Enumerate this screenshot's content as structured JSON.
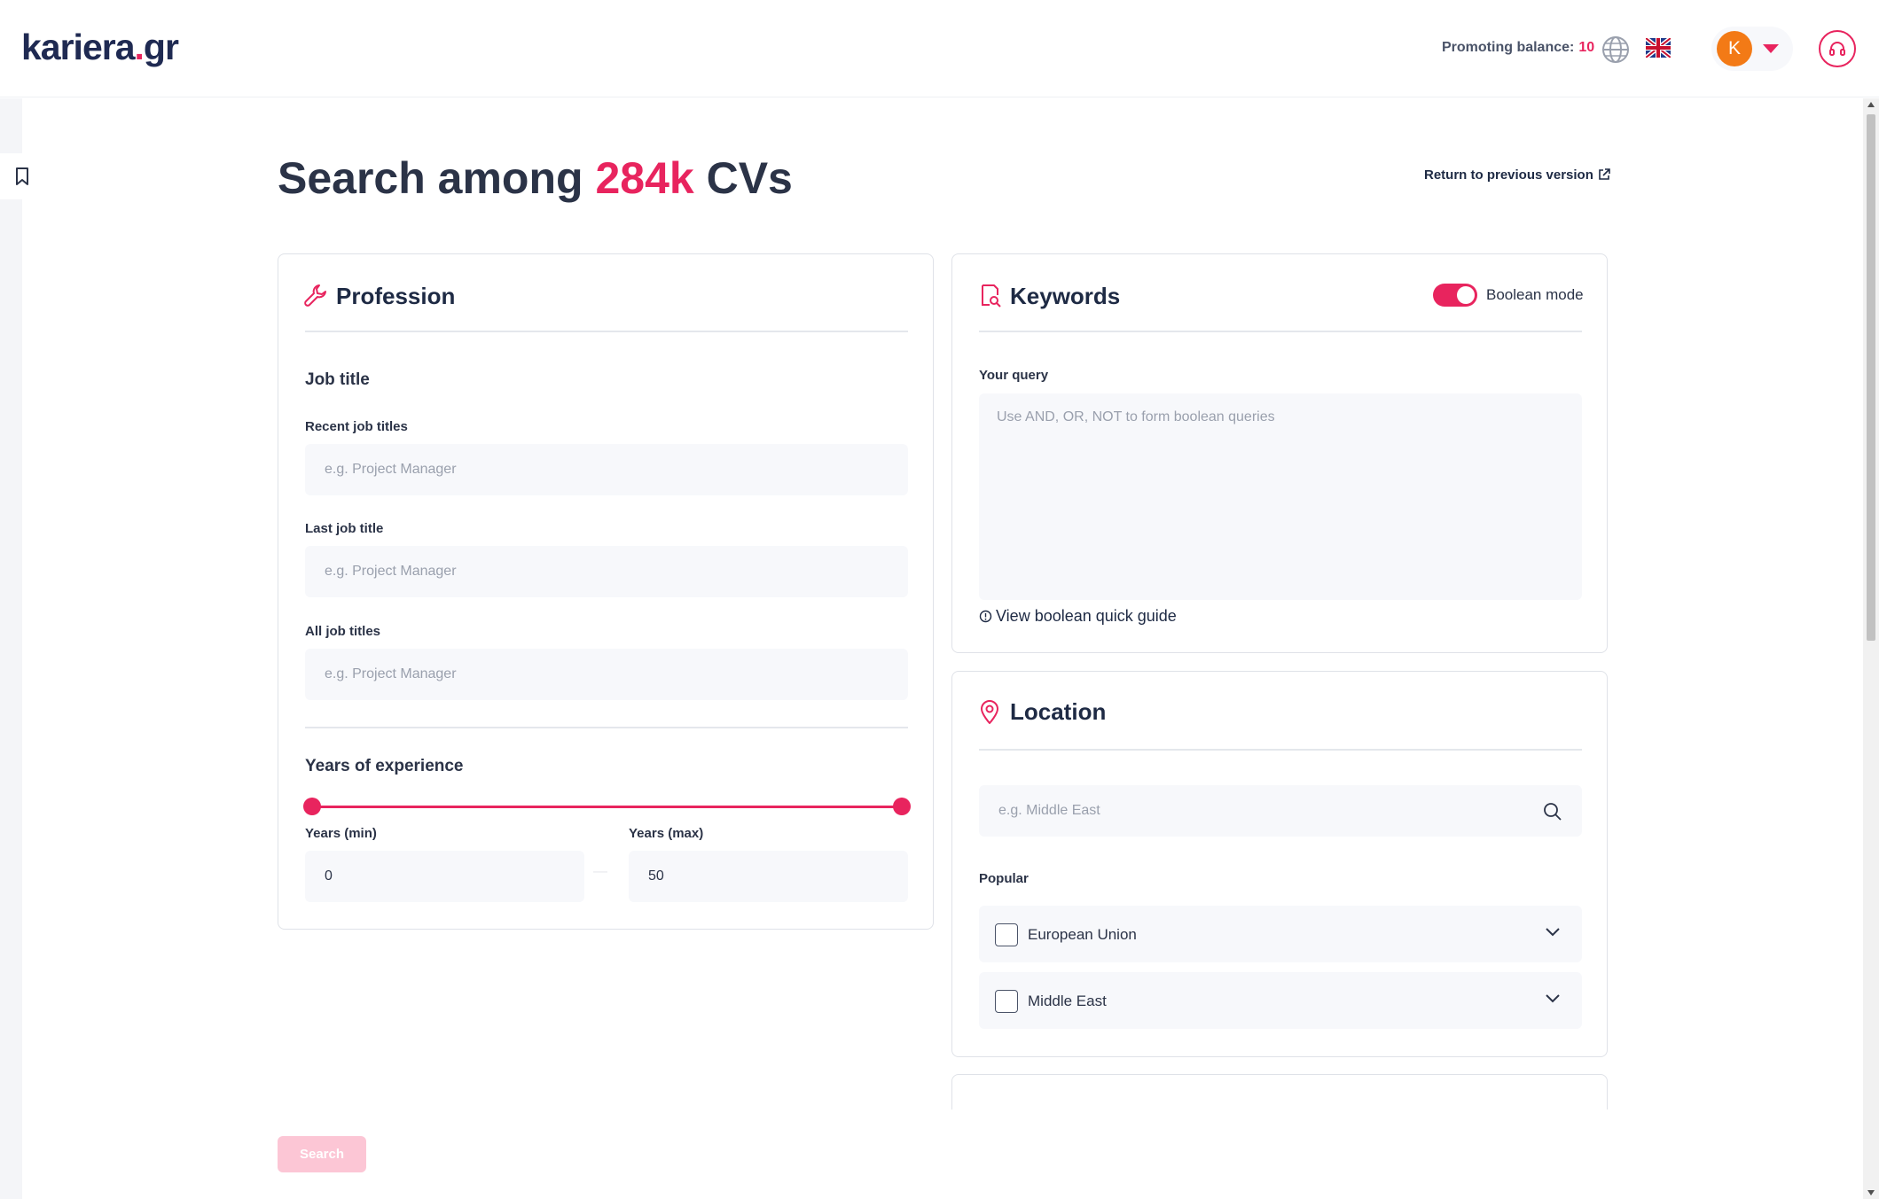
{
  "header": {
    "logo_main": "kariera",
    "logo_dot": ".",
    "logo_tld": "gr",
    "balance_label": "Promoting balance:",
    "balance_value": "10",
    "avatar_initial": "K"
  },
  "page": {
    "title_prefix": "Search among ",
    "title_highlight": "284k",
    "title_suffix": " CVs",
    "return_link": "Return to previous version"
  },
  "profession": {
    "title": "Profession",
    "job_title_section": "Job title",
    "recent_label": "Recent job titles",
    "recent_placeholder": "e.g. Project Manager",
    "last_label": "Last job title",
    "last_placeholder": "e.g. Project Manager",
    "all_label": "All job titles",
    "all_placeholder": "e.g. Project Manager",
    "experience_section": "Years of experience",
    "min_label": "Years (min)",
    "min_value": "0",
    "max_label": "Years (max)",
    "max_value": "50",
    "separator": "—"
  },
  "keywords": {
    "title": "Keywords",
    "boolean_label": "Boolean mode",
    "boolean_on": true,
    "query_label": "Your query",
    "query_placeholder": "Use AND, OR, NOT to form boolean queries",
    "guide_link": "View boolean quick guide"
  },
  "location": {
    "title": "Location",
    "search_placeholder": "e.g. Middle East",
    "popular_label": "Popular",
    "popular_items": [
      {
        "label": "European Union"
      },
      {
        "label": "Middle East"
      }
    ]
  },
  "actions": {
    "search_label": "Search"
  },
  "colors": {
    "accent": "#e8245e",
    "navy": "#1f2a52"
  }
}
